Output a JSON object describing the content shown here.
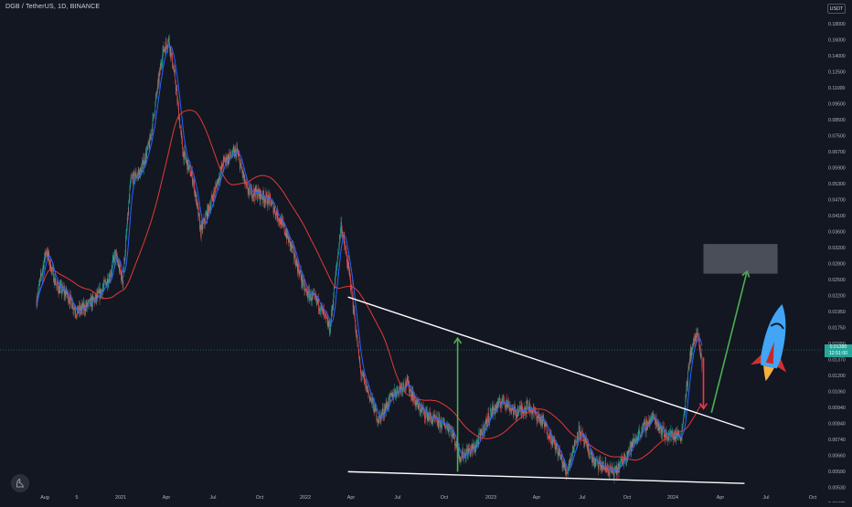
{
  "header": {
    "symbol_title": "DGB / TetherUS, 1D, BINANCE"
  },
  "price_axis": {
    "currency": "USDT",
    "labels": [
      "0.21000",
      "0.18000",
      "0.16000",
      "0.14000",
      "0.12500",
      "0.11000",
      "0.09500",
      "0.08500",
      "0.07500",
      "0.06700",
      "0.05900",
      "0.05300",
      "0.04700",
      "0.04100",
      "0.03600",
      "0.03200",
      "0.02800",
      "0.02500",
      "0.02200",
      "0.01950",
      "0.01750",
      "0.01550",
      "0.01370",
      "0.01200",
      "0.01060",
      "0.00940",
      "0.00840",
      "0.00740",
      "0.00660",
      "0.00590",
      "0.00530",
      "0.00475"
    ],
    "last_price": "0.01390",
    "countdown": "12:51:00"
  },
  "time_axis": {
    "labels": [
      "Aug",
      "5",
      "2021",
      "Apr",
      "Jul",
      "Oct",
      "2022",
      "Apr",
      "Jul",
      "Oct",
      "2023",
      "Apr",
      "Jul",
      "Oct",
      "2024",
      "Apr",
      "Jul",
      "Oct"
    ]
  },
  "colors": {
    "background": "#131722",
    "candle_up": "#26a69a",
    "candle_down": "#ef5350",
    "ma_fast": "#2962ff",
    "ma_slow": "#e53935",
    "trendline": "#ffffff",
    "arrow_up": "#4caf50",
    "arrow_down": "#f23645",
    "target_box": "#787b86"
  },
  "icons": {
    "rocket": "rocket-icon",
    "logo": "tradingview-logo-icon"
  },
  "chart_data": {
    "type": "candlestick",
    "scale": "log",
    "ylim": [
      0.0045,
      0.215
    ],
    "x_range": [
      "2020-08-01",
      "2024-10-31"
    ],
    "series": [
      {
        "name": "",
        "approx_close": [
          [
            "2020-08-01",
            0.0225
          ],
          [
            "2020-08-20",
            0.033
          ],
          [
            "2020-09-10",
            0.025
          ],
          [
            "2020-10-01",
            0.0235
          ],
          [
            "2020-10-20",
            0.0205
          ],
          [
            "2020-11-10",
            0.0215
          ],
          [
            "2020-12-01",
            0.023
          ],
          [
            "2020-12-25",
            0.027
          ],
          [
            "2021-01-05",
            0.032
          ],
          [
            "2021-01-20",
            0.026
          ],
          [
            "2021-02-05",
            0.056
          ],
          [
            "2021-02-25",
            0.06
          ],
          [
            "2021-03-15",
            0.075
          ],
          [
            "2021-04-10",
            0.15
          ],
          [
            "2021-04-22",
            0.165
          ],
          [
            "2021-05-05",
            0.12
          ],
          [
            "2021-05-20",
            0.07
          ],
          [
            "2021-06-10",
            0.056
          ],
          [
            "2021-06-25",
            0.038
          ],
          [
            "2021-07-20",
            0.05
          ],
          [
            "2021-08-10",
            0.065
          ],
          [
            "2021-09-05",
            0.07
          ],
          [
            "2021-09-25",
            0.052
          ],
          [
            "2021-10-15",
            0.051
          ],
          [
            "2021-11-10",
            0.048
          ],
          [
            "2021-12-05",
            0.04
          ],
          [
            "2021-12-25",
            0.033
          ],
          [
            "2022-01-20",
            0.024
          ],
          [
            "2022-02-15",
            0.022
          ],
          [
            "2022-03-10",
            0.018
          ],
          [
            "2022-04-01",
            0.04
          ],
          [
            "2022-04-20",
            0.026
          ],
          [
            "2022-05-10",
            0.013
          ],
          [
            "2022-06-15",
            0.009
          ],
          [
            "2022-07-15",
            0.011
          ],
          [
            "2022-08-10",
            0.012
          ],
          [
            "2022-09-01",
            0.01
          ],
          [
            "2022-10-01",
            0.009
          ],
          [
            "2022-11-05",
            0.0085
          ],
          [
            "2022-11-25",
            0.0068
          ],
          [
            "2022-12-25",
            0.0073
          ],
          [
            "2023-01-25",
            0.0095
          ],
          [
            "2023-02-20",
            0.0105
          ],
          [
            "2023-03-15",
            0.0095
          ],
          [
            "2023-04-10",
            0.01
          ],
          [
            "2023-05-10",
            0.0088
          ],
          [
            "2023-06-10",
            0.007
          ],
          [
            "2023-06-25",
            0.006
          ],
          [
            "2023-07-20",
            0.0083
          ],
          [
            "2023-08-20",
            0.0065
          ],
          [
            "2023-10-01",
            0.006
          ],
          [
            "2023-10-25",
            0.007
          ],
          [
            "2023-11-20",
            0.0082
          ],
          [
            "2023-12-15",
            0.0092
          ],
          [
            "2024-01-10",
            0.008
          ],
          [
            "2024-02-10",
            0.008
          ],
          [
            "2024-02-28",
            0.015
          ],
          [
            "2024-03-12",
            0.0175
          ],
          [
            "2024-03-22",
            0.0139
          ]
        ]
      }
    ],
    "annotations": {
      "last_price": 0.0139,
      "upper_trendline": [
        [
          "2022-04-15",
          0.023
        ],
        [
          "2024-06-15",
          0.0084
        ]
      ],
      "lower_trendline": [
        [
          "2022-04-15",
          0.00605
        ],
        [
          "2024-06-15",
          0.00553
        ]
      ],
      "green_arrow_up_2022": {
        "date": "2022-11-20",
        "from": 0.00605,
        "to": 0.0168
      },
      "red_arrow_down_2024": {
        "date": "2024-03-25",
        "from": 0.0145,
        "to": 0.0098
      },
      "green_arrow_up_2024": {
        "from": [
          "2024-04-10",
          0.0095
        ],
        "to": [
          "2024-06-20",
          0.028
        ]
      },
      "target_zone": {
        "x": [
          "2024-03-25",
          "2024-08-20"
        ],
        "y": [
          0.0275,
          0.0345
        ]
      }
    }
  }
}
